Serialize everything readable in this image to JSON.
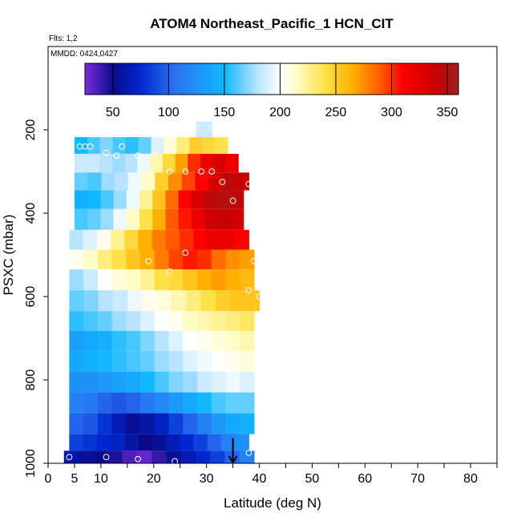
{
  "chart_data": {
    "type": "heatmap",
    "title": "ATOM4 Northeast_Pacific_1 HCN_CIT",
    "flights_label": "Flts: 1,2",
    "date_label": "MMDD: 0424,0427",
    "xlabel": "Latitude (deg N)",
    "ylabel": "PSXC (mbar)",
    "xlim": [
      0,
      85
    ],
    "ylim": [
      1000,
      0
    ],
    "x_ticks_major": [
      0,
      10,
      20,
      30,
      40,
      50,
      60,
      70,
      80
    ],
    "x_ticks_extra": [
      5
    ],
    "x_ticks_minor": [
      15,
      25,
      35,
      45,
      55,
      65,
      75,
      85
    ],
    "y_ticks": [
      200,
      400,
      600,
      800,
      1000
    ],
    "grid": false,
    "colorbar": {
      "location": "top",
      "range": [
        25,
        360
      ],
      "ticks": [
        50,
        100,
        150,
        200,
        250,
        300,
        350
      ],
      "stops": [
        {
          "v": 25,
          "c": "#7a2ee0"
        },
        {
          "v": 50,
          "c": "#0a0a8a"
        },
        {
          "v": 75,
          "c": "#0028d0"
        },
        {
          "v": 105,
          "c": "#2a70f0"
        },
        {
          "v": 150,
          "c": "#10b8ff"
        },
        {
          "v": 180,
          "c": "#b8e4ff"
        },
        {
          "v": 200,
          "c": "#ffffff"
        },
        {
          "v": 215,
          "c": "#fffcc8"
        },
        {
          "v": 240,
          "c": "#ffe24a"
        },
        {
          "v": 265,
          "c": "#ffb000"
        },
        {
          "v": 290,
          "c": "#ff5a00"
        },
        {
          "v": 310,
          "c": "#ff0000"
        },
        {
          "v": 340,
          "c": "#c80000"
        },
        {
          "v": 360,
          "c": "#a02020"
        }
      ]
    },
    "layers": [
      {
        "p": 200,
        "lat": [
          28,
          31
        ],
        "values": [
          185,
          185
        ]
      },
      {
        "p": 235,
        "lat": [
          5,
          34
        ],
        "values": [
          150,
          160,
          170,
          160,
          155,
          165,
          190,
          210,
          230,
          250,
          245,
          240
        ]
      },
      {
        "p": 280,
        "lat": [
          5,
          36
        ],
        "values": [
          185,
          185,
          180,
          175,
          180,
          195,
          220,
          245,
          270,
          300,
          320,
          330,
          320
        ]
      },
      {
        "p": 325,
        "lat": [
          5,
          38
        ],
        "values": [
          165,
          160,
          175,
          180,
          195,
          215,
          250,
          275,
          295,
          310,
          330,
          345,
          340
        ]
      },
      {
        "p": 365,
        "lat": [
          5,
          37
        ],
        "values": [
          145,
          150,
          160,
          175,
          195,
          225,
          255,
          285,
          310,
          330,
          345,
          350,
          345
        ]
      },
      {
        "p": 415,
        "lat": [
          5,
          37
        ],
        "values": [
          160,
          165,
          175,
          195,
          215,
          240,
          265,
          290,
          305,
          320,
          335,
          340,
          335
        ]
      },
      {
        "p": 465,
        "lat": [
          4,
          38
        ],
        "values": [
          180,
          190,
          205,
          225,
          245,
          265,
          280,
          290,
          300,
          310,
          320,
          320,
          310
        ]
      },
      {
        "p": 510,
        "lat": [
          4,
          39
        ],
        "values": [
          205,
          215,
          230,
          240,
          255,
          265,
          280,
          295,
          305,
          300,
          285,
          275,
          270
        ]
      },
      {
        "p": 560,
        "lat": [
          4,
          39
        ],
        "values": [
          175,
          185,
          200,
          210,
          215,
          225,
          240,
          245,
          255,
          265,
          270,
          265,
          260
        ]
      },
      {
        "p": 610,
        "lat": [
          4,
          40
        ],
        "values": [
          165,
          170,
          180,
          185,
          195,
          205,
          210,
          220,
          230,
          240,
          250,
          255,
          255
        ]
      },
      {
        "p": 660,
        "lat": [
          4,
          39
        ],
        "values": [
          155,
          160,
          165,
          175,
          180,
          190,
          200,
          205,
          215,
          220,
          225,
          230,
          235
        ]
      },
      {
        "p": 705,
        "lat": [
          4,
          39
        ],
        "values": [
          135,
          140,
          145,
          155,
          160,
          170,
          180,
          190,
          200,
          205,
          210,
          215,
          220
        ]
      },
      {
        "p": 755,
        "lat": [
          4,
          39
        ],
        "values": [
          140,
          145,
          150,
          155,
          160,
          165,
          175,
          180,
          190,
          195,
          200,
          205,
          210
        ]
      },
      {
        "p": 805,
        "lat": [
          4,
          39
        ],
        "values": [
          125,
          125,
          130,
          135,
          140,
          150,
          160,
          170,
          175,
          185,
          190,
          195,
          190
        ]
      },
      {
        "p": 855,
        "lat": [
          4,
          39
        ],
        "values": [
          115,
          110,
          100,
          95,
          100,
          110,
          120,
          130,
          140,
          150,
          160,
          165,
          165
        ]
      },
      {
        "p": 905,
        "lat": [
          4,
          39
        ],
        "values": [
          100,
          95,
          80,
          65,
          55,
          60,
          70,
          85,
          100,
          115,
          130,
          140,
          145
        ]
      },
      {
        "p": 955,
        "lat": [
          4,
          38
        ],
        "values": [
          85,
          80,
          75,
          70,
          60,
          50,
          55,
          65,
          75,
          85,
          100,
          115,
          125
        ]
      },
      {
        "p": 985,
        "lat": [
          3,
          39
        ],
        "values": [
          60,
          55,
          50,
          45,
          35,
          30,
          40,
          55,
          65,
          75,
          85,
          100,
          115
        ]
      }
    ],
    "points": [
      {
        "lat": 28,
        "p": 195
      },
      {
        "lat": 31,
        "p": 195
      },
      {
        "lat": 6,
        "p": 240
      },
      {
        "lat": 7,
        "p": 240
      },
      {
        "lat": 8,
        "p": 240
      },
      {
        "lat": 14,
        "p": 240
      },
      {
        "lat": 11,
        "p": 255
      },
      {
        "lat": 17,
        "p": 262
      },
      {
        "lat": 20,
        "p": 262
      },
      {
        "lat": 13,
        "p": 262
      },
      {
        "lat": 23,
        "p": 300
      },
      {
        "lat": 26,
        "p": 300
      },
      {
        "lat": 29,
        "p": 300
      },
      {
        "lat": 31,
        "p": 300
      },
      {
        "lat": 33,
        "p": 325
      },
      {
        "lat": 38,
        "p": 330
      },
      {
        "lat": 35,
        "p": 370
      },
      {
        "lat": 26,
        "p": 495
      },
      {
        "lat": 5,
        "p": 505
      },
      {
        "lat": 4,
        "p": 525
      },
      {
        "lat": 9,
        "p": 525
      },
      {
        "lat": 19,
        "p": 515
      },
      {
        "lat": 39,
        "p": 515
      },
      {
        "lat": 23,
        "p": 540
      },
      {
        "lat": 38,
        "p": 585
      },
      {
        "lat": 40,
        "p": 600
      },
      {
        "lat": 4,
        "p": 985
      },
      {
        "lat": 11,
        "p": 985
      },
      {
        "lat": 17,
        "p": 990
      },
      {
        "lat": 24,
        "p": 995
      },
      {
        "lat": 38,
        "p": 975
      }
    ],
    "marker": {
      "lat": 35,
      "p_top": 940,
      "p_bottom": 1000
    }
  }
}
